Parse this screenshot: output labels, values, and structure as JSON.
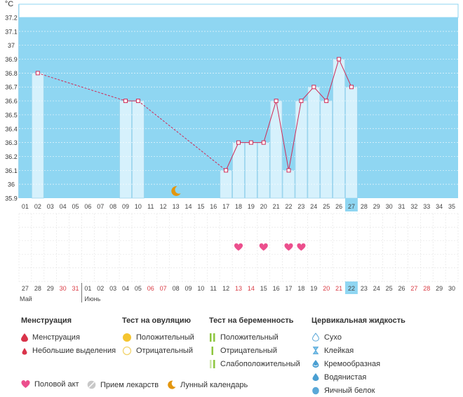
{
  "chart_data": {
    "type": "bar",
    "unit": "°C",
    "y_ticks": [
      "37.2",
      "37.1",
      "37",
      "36.9",
      "36.8",
      "36.7",
      "36.6",
      "36.5",
      "36.4",
      "36.3",
      "36.2",
      "36.1",
      "36",
      "35.9"
    ],
    "ylim": [
      35.9,
      37.2
    ],
    "day_numbers": [
      "01",
      "02",
      "03",
      "04",
      "05",
      "06",
      "07",
      "08",
      "09",
      "10",
      "11",
      "12",
      "13",
      "14",
      "15",
      "16",
      "17",
      "18",
      "19",
      "20",
      "21",
      "22",
      "23",
      "24",
      "25",
      "26",
      "27",
      "28",
      "29",
      "30",
      "31",
      "32",
      "33",
      "34",
      "35"
    ],
    "temperatures": {
      "02": 36.8,
      "09": 36.6,
      "10": 36.6,
      "17": 36.1,
      "18": 36.3,
      "19": 36.3,
      "20": 36.3,
      "21": 36.6,
      "22": 36.1,
      "23": 36.6,
      "24": 36.7,
      "25": 36.6,
      "26": 36.9,
      "27": 36.7
    },
    "current_day": "27",
    "moon_day": "13",
    "intercourse_days": [
      "18",
      "20",
      "22",
      "23"
    ],
    "calendar_dates": [
      "27",
      "28",
      "29",
      "30",
      "31",
      "01",
      "02",
      "03",
      "04",
      "05",
      "06",
      "07",
      "08",
      "09",
      "10",
      "11",
      "12",
      "13",
      "14",
      "15",
      "16",
      "17",
      "18",
      "19",
      "20",
      "21",
      "22",
      "23",
      "24",
      "25",
      "26",
      "27",
      "28",
      "29",
      "30"
    ],
    "red_dates_index": [
      3,
      4,
      10,
      11,
      17,
      18,
      24,
      25,
      31,
      32
    ],
    "months": [
      {
        "label": "Май",
        "start_index": 0
      },
      {
        "label": "Июнь",
        "start_index": 5
      }
    ],
    "colors": {
      "plot_bg": "#8fd6f2",
      "bar_fill": "#d6f1fc",
      "bar_stroke": "#9fd6ee",
      "line": "#cf2a56",
      "current": "#8fd6f2",
      "heart": "#ec4f8d",
      "moon": "#e3960e",
      "red_date": "#d93b44"
    }
  },
  "legend": {
    "menstruation": {
      "title": "Менструация",
      "items": [
        "Менструация",
        "Небольшие выделения"
      ]
    },
    "ovulation": {
      "title": "Тест на овуляцию",
      "items": [
        "Положительный",
        "Отрицательный"
      ]
    },
    "pregnancy": {
      "title": "Тест на беременность",
      "items": [
        "Положительный",
        "Отрицательный",
        "Слабоположительный"
      ]
    },
    "cervical": {
      "title": "Цервикальная жидкость",
      "items": [
        "Сухо",
        "Клейкая",
        "Кремообразная",
        "Водянистая",
        "Яичный белок"
      ]
    },
    "bottom": [
      "Половой акт",
      "Прием лекарств",
      "Лунный календарь"
    ]
  }
}
